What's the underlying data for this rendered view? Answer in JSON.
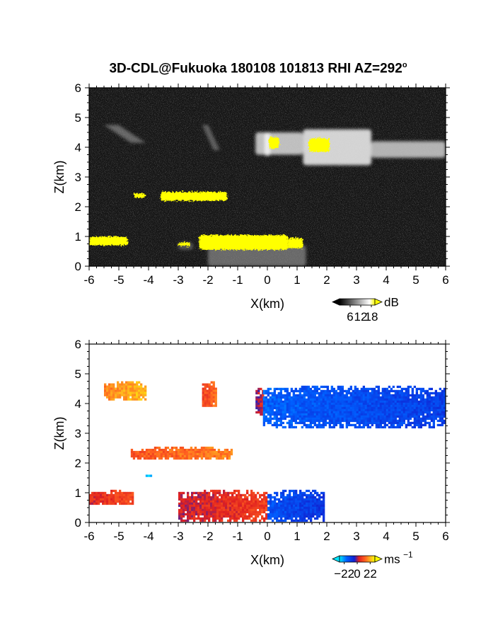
{
  "title": {
    "text": "3D-CDL@Fukuoka 180108 101813 RHI AZ=292",
    "degree_mark": "o"
  },
  "chart_data": [
    {
      "type": "heatmap",
      "panel": "reflectivity",
      "xlabel": "X(km)",
      "ylabel": "Z(km)",
      "xlim": [
        -6,
        6
      ],
      "ylim": [
        0,
        6
      ],
      "x_ticks": [
        "-6",
        "-5",
        "-4",
        "-3",
        "-2",
        "-1",
        "0",
        "1",
        "2",
        "3",
        "4",
        "5",
        "6"
      ],
      "y_ticks": [
        "0",
        "1",
        "2",
        "3",
        "4",
        "5",
        "6"
      ],
      "grid": false,
      "colorbar": {
        "unit": "dB",
        "ticks": [
          "6",
          "12",
          "18"
        ],
        "tick_values": [
          6,
          12,
          18
        ],
        "range": [
          0,
          20
        ],
        "low_color": "#000000",
        "high_color": "#ffffff",
        "max_color": "#ffff00"
      },
      "background": "noise, dark grey",
      "regions": [
        {
          "x": [
            -5.5,
            -4.1
          ],
          "z": [
            4.15,
            4.75
          ],
          "level": "faint"
        },
        {
          "x": [
            -2.2,
            -1.6
          ],
          "z": [
            3.9,
            4.75
          ],
          "level": "faint"
        },
        {
          "x": [
            -0.4,
            6.0
          ],
          "z": [
            3.5,
            4.6
          ],
          "level": "bright, >18 dB at x≈0.1 and x≈1.4–2.1"
        },
        {
          "x": [
            -4.6,
            -1.3
          ],
          "z": [
            2.15,
            2.5
          ],
          "level": ">18 dB"
        },
        {
          "x": [
            -6.0,
            -4.3
          ],
          "z": [
            0.6,
            1.05
          ],
          "level": ">18 dB"
        },
        {
          "x": [
            -3.0,
            1.3
          ],
          "z": [
            0.0,
            1.1
          ],
          "level": ">18 dB core at x≈-1.5–0.7"
        }
      ]
    },
    {
      "type": "heatmap",
      "panel": "doppler velocity",
      "xlabel": "X(km)",
      "ylabel": "Z(km)",
      "xlim": [
        -6,
        6
      ],
      "ylim": [
        0,
        6
      ],
      "x_ticks": [
        "-6",
        "-5",
        "-4",
        "-3",
        "-2",
        "-1",
        "0",
        "1",
        "2",
        "3",
        "4",
        "5",
        "6"
      ],
      "y_ticks": [
        "0",
        "1",
        "2",
        "3",
        "4",
        "5",
        "6"
      ],
      "grid": false,
      "colorbar": {
        "unit": "ms",
        "unit_exponent": "−1",
        "ticks": [
          "−22",
          "0",
          "22"
        ],
        "tick_values": [
          -22,
          0,
          22
        ],
        "range": [
          -30,
          30
        ],
        "colors": [
          "#00e5ff",
          "#0060ff",
          "#1020d0",
          "#e02020",
          "#ff6020",
          "#ffb020",
          "#ffff00"
        ]
      },
      "regions": [
        {
          "x": [
            -5.5,
            -4.1
          ],
          "z": [
            4.15,
            4.75
          ],
          "velocity_ms": 20
        },
        {
          "x": [
            -2.2,
            -1.7
          ],
          "z": [
            3.9,
            4.75
          ],
          "velocity_ms": 12
        },
        {
          "x": [
            -0.4,
            -0.15
          ],
          "z": [
            3.6,
            4.6
          ],
          "velocity_ms": 2
        },
        {
          "x": [
            -0.15,
            6.0
          ],
          "z": [
            3.2,
            4.6
          ],
          "velocity_ms": -14
        },
        {
          "x": [
            -4.6,
            -1.2
          ],
          "z": [
            2.15,
            2.55
          ],
          "velocity_ms": 14
        },
        {
          "x": [
            -4.1,
            -3.9
          ],
          "z": [
            1.55,
            1.68
          ],
          "velocity_ms": -26
        },
        {
          "x": [
            -6.0,
            -4.5
          ],
          "z": [
            0.6,
            1.1
          ],
          "velocity_ms": 7
        },
        {
          "x": [
            -3.0,
            0.0
          ],
          "z": [
            0.05,
            1.1
          ],
          "velocity_ms": 5
        },
        {
          "x": [
            0.0,
            1.9
          ],
          "z": [
            0.05,
            1.1
          ],
          "velocity_ms": -12
        }
      ]
    }
  ]
}
